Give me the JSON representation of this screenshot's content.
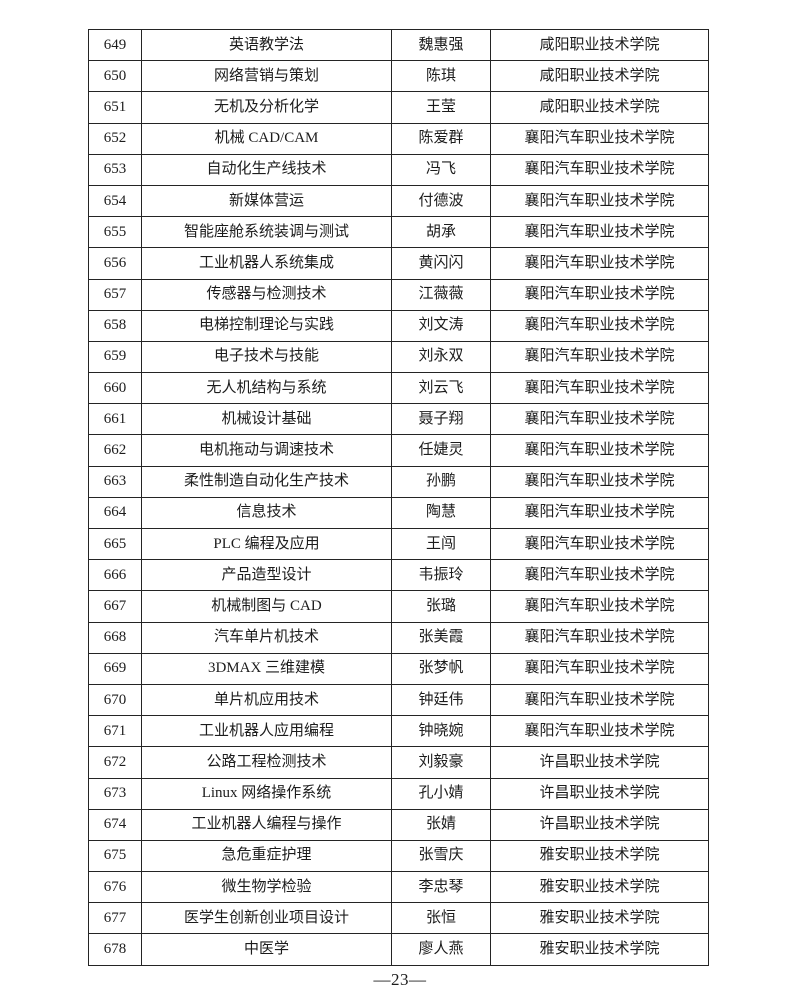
{
  "footer": {
    "page_number": "—23—"
  },
  "table": {
    "rows": [
      {
        "no": "649",
        "course": "英语教学法",
        "teacher": "魏惠强",
        "school": "咸阳职业技术学院"
      },
      {
        "no": "650",
        "course": "网络营销与策划",
        "teacher": "陈琪",
        "school": "咸阳职业技术学院"
      },
      {
        "no": "651",
        "course": "无机及分析化学",
        "teacher": "王莹",
        "school": "咸阳职业技术学院"
      },
      {
        "no": "652",
        "course": "机械 CAD/CAM",
        "teacher": "陈爱群",
        "school": "襄阳汽车职业技术学院"
      },
      {
        "no": "653",
        "course": "自动化生产线技术",
        "teacher": "冯飞",
        "school": "襄阳汽车职业技术学院"
      },
      {
        "no": "654",
        "course": "新媒体营运",
        "teacher": "付德波",
        "school": "襄阳汽车职业技术学院"
      },
      {
        "no": "655",
        "course": "智能座舱系统装调与测试",
        "teacher": "胡承",
        "school": "襄阳汽车职业技术学院"
      },
      {
        "no": "656",
        "course": "工业机器人系统集成",
        "teacher": "黄闪闪",
        "school": "襄阳汽车职业技术学院"
      },
      {
        "no": "657",
        "course": "传感器与检测技术",
        "teacher": "江薇薇",
        "school": "襄阳汽车职业技术学院"
      },
      {
        "no": "658",
        "course": "电梯控制理论与实践",
        "teacher": "刘文涛",
        "school": "襄阳汽车职业技术学院"
      },
      {
        "no": "659",
        "course": "电子技术与技能",
        "teacher": "刘永双",
        "school": "襄阳汽车职业技术学院"
      },
      {
        "no": "660",
        "course": "无人机结构与系统",
        "teacher": "刘云飞",
        "school": "襄阳汽车职业技术学院"
      },
      {
        "no": "661",
        "course": "机械设计基础",
        "teacher": "聂子翔",
        "school": "襄阳汽车职业技术学院"
      },
      {
        "no": "662",
        "course": "电机拖动与调速技术",
        "teacher": "任婕灵",
        "school": "襄阳汽车职业技术学院"
      },
      {
        "no": "663",
        "course": "柔性制造自动化生产技术",
        "teacher": "孙鹏",
        "school": "襄阳汽车职业技术学院"
      },
      {
        "no": "664",
        "course": "信息技术",
        "teacher": "陶慧",
        "school": "襄阳汽车职业技术学院"
      },
      {
        "no": "665",
        "course": "PLC 编程及应用",
        "teacher": "王闯",
        "school": "襄阳汽车职业技术学院"
      },
      {
        "no": "666",
        "course": "产品造型设计",
        "teacher": "韦振玲",
        "school": "襄阳汽车职业技术学院"
      },
      {
        "no": "667",
        "course": "机械制图与 CAD",
        "teacher": "张璐",
        "school": "襄阳汽车职业技术学院"
      },
      {
        "no": "668",
        "course": "汽车单片机技术",
        "teacher": "张美霞",
        "school": "襄阳汽车职业技术学院"
      },
      {
        "no": "669",
        "course": "3DMAX 三维建模",
        "teacher": "张梦帆",
        "school": "襄阳汽车职业技术学院"
      },
      {
        "no": "670",
        "course": "单片机应用技术",
        "teacher": "钟廷伟",
        "school": "襄阳汽车职业技术学院"
      },
      {
        "no": "671",
        "course": "工业机器人应用编程",
        "teacher": "钟晓婉",
        "school": "襄阳汽车职业技术学院"
      },
      {
        "no": "672",
        "course": "公路工程检测技术",
        "teacher": "刘毅豪",
        "school": "许昌职业技术学院"
      },
      {
        "no": "673",
        "course": "Linux 网络操作系统",
        "teacher": "孔小婧",
        "school": "许昌职业技术学院"
      },
      {
        "no": "674",
        "course": "工业机器人编程与操作",
        "teacher": "张婧",
        "school": "许昌职业技术学院"
      },
      {
        "no": "675",
        "course": "急危重症护理",
        "teacher": "张雪庆",
        "school": "雅安职业技术学院"
      },
      {
        "no": "676",
        "course": "微生物学检验",
        "teacher": "李忠琴",
        "school": "雅安职业技术学院"
      },
      {
        "no": "677",
        "course": "医学生创新创业项目设计",
        "teacher": "张恒",
        "school": "雅安职业技术学院"
      },
      {
        "no": "678",
        "course": "中医学",
        "teacher": "廖人燕",
        "school": "雅安职业技术学院"
      }
    ]
  }
}
